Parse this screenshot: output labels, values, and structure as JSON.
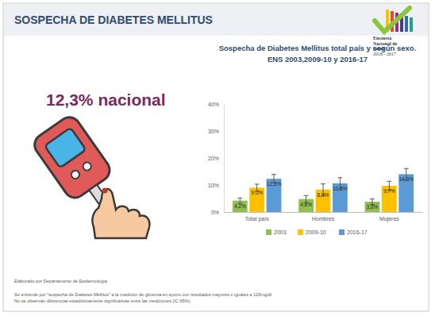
{
  "header": "SOSPECHA DE DIABETES MELLITUS",
  "logo": [
    "Encuesta",
    "Nacional de",
    "Salud",
    "2016 - 2017"
  ],
  "headline": "12,3% nacional",
  "footnotes": [
    "Elaborado por Departamento de Epidemiología",
    "Se entiende por \"sospecha de Diabetes Mellitus\" a la medición de glicemia en ayuno con resultados mayores o iguales a 126mg/dl.",
    "No se observan diferencias estadísticamente significativas entre las mediciones (IC 95%)."
  ],
  "chart_data": {
    "type": "bar",
    "title": "Sospecha de Diabetes Mellitus total país y según sexo.",
    "subtitle": "ENS 2003,2009-10 y 2016-17",
    "categories": [
      "Total país",
      "Hombres",
      "Mujeres"
    ],
    "series": [
      {
        "name": "2003",
        "color": "#8fbf4d",
        "values": [
          4.2,
          4.8,
          3.8
        ],
        "value_labels": [
          "4,2%",
          "4,8%",
          "3,8%"
        ],
        "errors": [
          1.0,
          1.3,
          1.0
        ]
      },
      {
        "name": "2009-10",
        "color": "#ffc000",
        "values": [
          9.0,
          8.3,
          9.7
        ],
        "value_labels": [
          "9,0%",
          "8,3%",
          "9,7%"
        ],
        "errors": [
          1.3,
          2.1,
          1.7
        ]
      },
      {
        "name": "2016-17",
        "color": "#5b9bd5",
        "values": [
          12.3,
          10.6,
          14.0
        ],
        "value_labels": [
          "12,3%",
          "10,6%",
          "14,0%"
        ],
        "errors": [
          1.6,
          2.1,
          2.1
        ]
      }
    ],
    "ylim": [
      0,
      40
    ],
    "yticks": [
      {
        "value": 0,
        "label": "0%"
      },
      {
        "value": 10,
        "label": "10%"
      },
      {
        "value": 20,
        "label": "20%"
      },
      {
        "value": 30,
        "label": "30%"
      },
      {
        "value": 40,
        "label": "40%"
      }
    ],
    "grid": false,
    "legend": "bottom",
    "data_labels": true
  }
}
